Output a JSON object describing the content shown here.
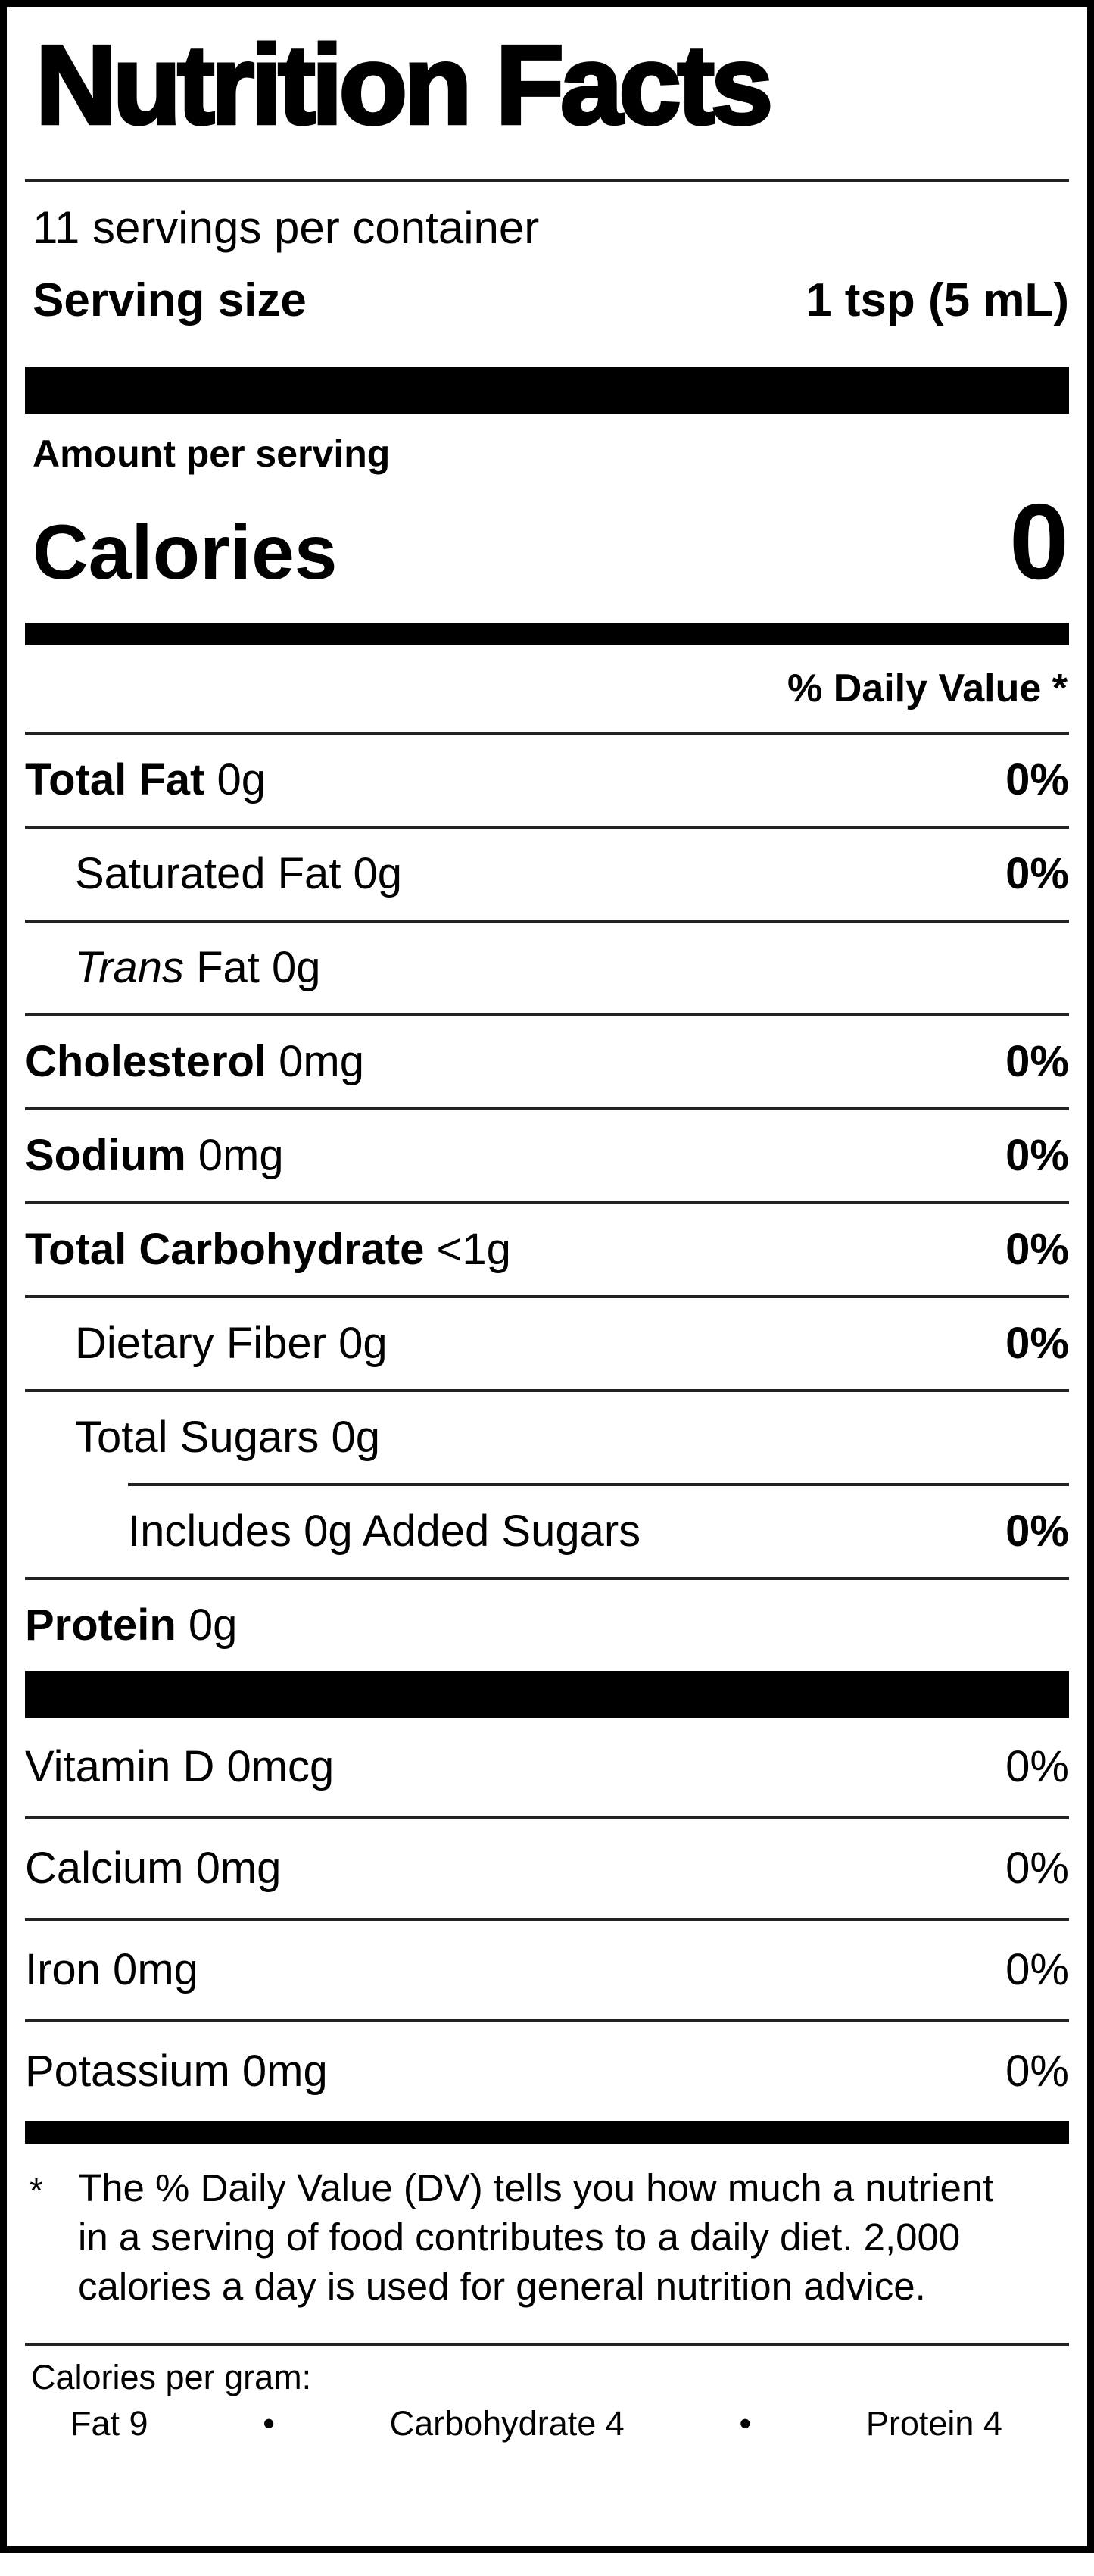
{
  "label": {
    "title": "Nutrition Facts",
    "servings_per_container": "11 servings per container",
    "serving_size_label": "Serving size",
    "serving_size_value": "1 tsp (5 mL)",
    "amount_per_serving": "Amount per serving",
    "calories_label": "Calories",
    "calories_value": "0",
    "daily_value_header": "% Daily Value *"
  },
  "rows": [
    {
      "bold": "Total Fat",
      "reg": " 0g",
      "pct": "0%"
    },
    {
      "reg": "Saturated Fat 0g",
      "pct": "0%"
    },
    {
      "italic": "Trans",
      "reg": " Fat 0g"
    },
    {
      "bold": "Cholesterol",
      "reg": " 0mg",
      "pct": "0%"
    },
    {
      "bold": "Sodium",
      "reg": " 0mg",
      "pct": "0%"
    },
    {
      "bold": "Total Carbohydrate",
      "reg": " <1g",
      "pct": "0%"
    },
    {
      "reg": "Dietary Fiber 0g",
      "pct": "0%"
    },
    {
      "reg": "Total Sugars 0g"
    },
    {
      "reg": "Includes 0g Added Sugars",
      "pct": "0%"
    },
    {
      "bold": "Protein",
      "reg": " 0g"
    }
  ],
  "vitamins": [
    {
      "name": "Vitamin D 0mcg",
      "pct": "0%"
    },
    {
      "name": "Calcium 0mg",
      "pct": "0%"
    },
    {
      "name": "Iron 0mg",
      "pct": "0%"
    },
    {
      "name": "Potassium 0mg",
      "pct": "0%"
    }
  ],
  "footnote": {
    "marker": "*",
    "text": "The % Daily Value (DV) tells you how much a nutrient in a serving of food contributes to a daily diet. 2,000 calories a day is used for general nutrition advice."
  },
  "calories_per_gram": {
    "heading": "Calories per gram:",
    "fat": "Fat 9",
    "carbohydrate": "Carbohydrate 4",
    "protein": "Protein 4",
    "bullet": "•"
  }
}
